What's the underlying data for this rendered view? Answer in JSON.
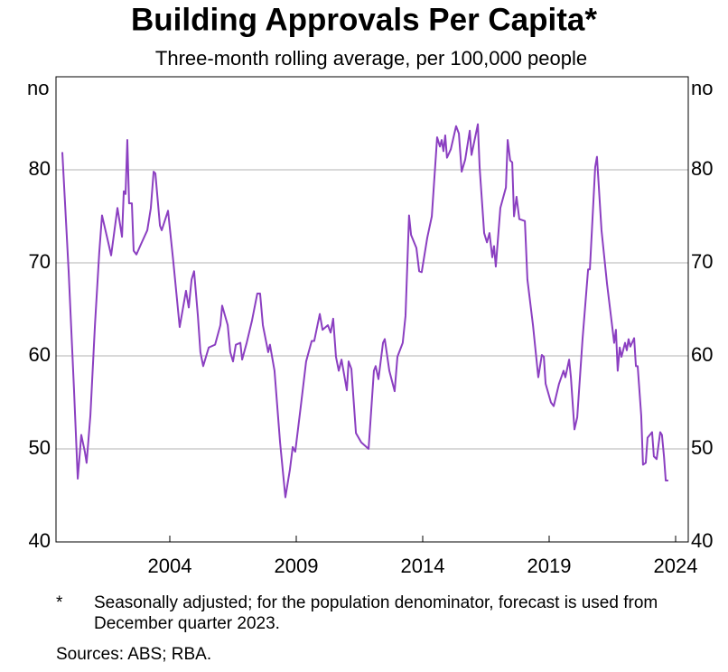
{
  "chart_data": {
    "type": "line",
    "title": "Building Approvals Per Capita*",
    "subtitle": "Three-month rolling average, per 100,000 people",
    "y_unit": "no",
    "color": "#8b3fc1",
    "grid": true,
    "xlim": [
      1999.5,
      2024.5
    ],
    "xticks": [
      2004,
      2009,
      2014,
      2019,
      2024
    ],
    "ylim": [
      40,
      90
    ],
    "yticks": [
      40,
      50,
      60,
      70,
      80
    ],
    "x": [
      1999.75,
      2000.0,
      2000.21,
      2000.36,
      2000.5,
      2000.64,
      2000.71,
      2000.86,
      2001.04,
      2001.21,
      2001.32,
      2001.54,
      2001.68,
      2001.93,
      2002.11,
      2002.18,
      2002.25,
      2002.32,
      2002.39,
      2002.5,
      2002.57,
      2002.68,
      2002.86,
      2003.11,
      2003.25,
      2003.36,
      2003.43,
      2003.61,
      2003.68,
      2003.93,
      2004.14,
      2004.39,
      2004.64,
      2004.75,
      2004.86,
      2004.96,
      2005.11,
      2005.21,
      2005.32,
      2005.54,
      2005.79,
      2006.0,
      2006.07,
      2006.29,
      2006.39,
      2006.5,
      2006.61,
      2006.79,
      2006.86,
      2007.04,
      2007.25,
      2007.46,
      2007.57,
      2007.68,
      2007.89,
      2007.96,
      2008.14,
      2008.36,
      2008.57,
      2008.75,
      2008.86,
      2008.96,
      2009.18,
      2009.39,
      2009.61,
      2009.71,
      2009.93,
      2010.04,
      2010.25,
      2010.36,
      2010.46,
      2010.57,
      2010.68,
      2010.79,
      2011.0,
      2011.07,
      2011.18,
      2011.36,
      2011.57,
      2011.86,
      2012.07,
      2012.14,
      2012.25,
      2012.43,
      2012.5,
      2012.68,
      2012.89,
      2013.0,
      2013.21,
      2013.32,
      2013.46,
      2013.54,
      2013.75,
      2013.86,
      2013.96,
      2014.18,
      2014.36,
      2014.57,
      2014.68,
      2014.75,
      2014.82,
      2014.89,
      2014.96,
      2015.11,
      2015.32,
      2015.43,
      2015.54,
      2015.68,
      2015.86,
      2015.93,
      2016.18,
      2016.25,
      2016.43,
      2016.54,
      2016.64,
      2016.75,
      2016.82,
      2016.89,
      2017.07,
      2017.29,
      2017.36,
      2017.46,
      2017.54,
      2017.61,
      2017.71,
      2017.82,
      2018.04,
      2018.14,
      2018.36,
      2018.57,
      2018.71,
      2018.79,
      2018.86,
      2019.07,
      2019.18,
      2019.39,
      2019.57,
      2019.64,
      2019.79,
      2019.86,
      2020.0,
      2020.11,
      2020.32,
      2020.54,
      2020.61,
      2020.82,
      2020.89,
      2021.07,
      2021.29,
      2021.5,
      2021.57,
      2021.64,
      2021.71,
      2021.79,
      2021.86,
      2022.0,
      2022.07,
      2022.14,
      2022.21,
      2022.36,
      2022.43,
      2022.5,
      2022.64,
      2022.71,
      2022.82,
      2022.89,
      2023.07,
      2023.14,
      2023.25,
      2023.39,
      2023.46,
      2023.54,
      2023.61,
      2023.71
    ],
    "values": [
      81.9,
      69.1,
      56.5,
      46.8,
      51.5,
      49.7,
      48.5,
      53.6,
      63.3,
      71.1,
      75.1,
      72.5,
      70.8,
      75.9,
      72.8,
      77.7,
      77.4,
      83.2,
      76.4,
      76.4,
      71.3,
      70.9,
      72.0,
      73.5,
      75.9,
      79.8,
      79.6,
      74.0,
      73.5,
      75.6,
      70.1,
      63.1,
      67.0,
      65.2,
      68.2,
      69.1,
      64.3,
      60.4,
      58.9,
      60.9,
      61.2,
      63.3,
      65.4,
      63.3,
      60.4,
      59.4,
      61.2,
      61.4,
      59.6,
      61.4,
      63.8,
      66.7,
      66.7,
      63.3,
      60.4,
      61.2,
      58.4,
      50.7,
      44.8,
      47.8,
      50.2,
      49.7,
      54.6,
      59.4,
      61.6,
      61.6,
      64.5,
      62.8,
      63.3,
      62.5,
      64.0,
      59.9,
      58.4,
      59.6,
      56.3,
      59.4,
      58.6,
      51.7,
      50.7,
      50.0,
      58.4,
      58.9,
      57.5,
      61.4,
      61.8,
      58.4,
      56.2,
      59.9,
      61.4,
      64.3,
      75.1,
      73.0,
      71.6,
      69.1,
      69.0,
      72.7,
      75.0,
      83.5,
      82.5,
      83.2,
      82.0,
      83.7,
      81.3,
      82.2,
      84.7,
      83.9,
      79.8,
      81.1,
      84.2,
      81.6,
      84.9,
      80.3,
      73.2,
      72.2,
      73.2,
      70.6,
      71.8,
      69.6,
      75.9,
      78.1,
      83.2,
      81.0,
      80.8,
      75.0,
      77.1,
      74.7,
      74.5,
      68.2,
      63.3,
      57.7,
      60.1,
      59.9,
      57.0,
      55.0,
      54.6,
      57.0,
      58.4,
      57.7,
      59.6,
      57.7,
      52.1,
      53.4,
      61.8,
      69.3,
      69.3,
      80.3,
      81.4,
      73.5,
      67.7,
      63.0,
      61.4,
      62.8,
      58.4,
      60.9,
      59.9,
      61.4,
      60.6,
      61.8,
      61.0,
      61.9,
      58.9,
      58.9,
      53.6,
      48.3,
      48.5,
      51.2,
      51.8,
      49.2,
      48.9,
      51.8,
      51.5,
      49.2,
      46.6,
      46.6
    ],
    "footnote_marker": "*",
    "footnote": "Seasonally adjusted; for the population denominator, forecast is used from December quarter 2023.",
    "sources": "Sources: ABS; RBA."
  }
}
